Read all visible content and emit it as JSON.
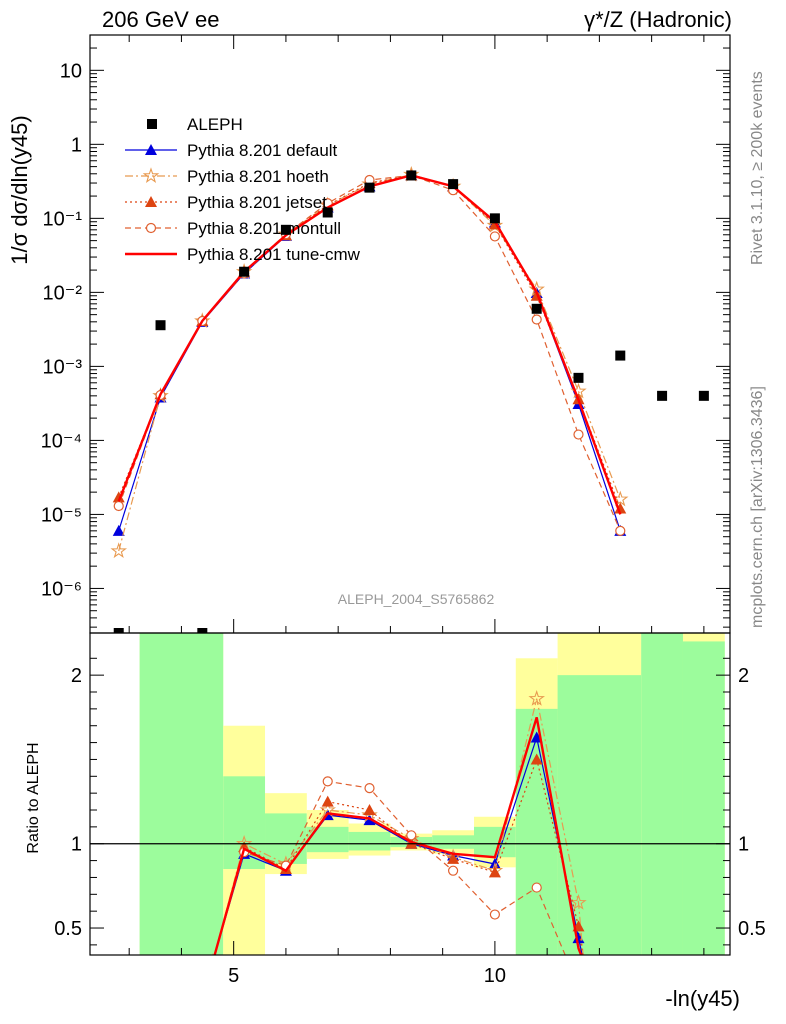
{
  "chart_data": [
    {
      "type": "line",
      "title_left": "206 GeV ee",
      "title_right": "γ*/Z (Hadronic)",
      "ylabel": "1/σ  dσ/dln(y45)",
      "yscale": "log",
      "xlim": [
        2.25,
        14.5
      ],
      "ylim": [
        2.5e-07,
        30
      ],
      "ytick_labels": [
        "10⁻⁶",
        "10⁻⁵",
        "10⁻⁴",
        "10⁻³",
        "10⁻²",
        "10⁻¹",
        "1",
        "10"
      ],
      "analysis_label": "ALEPH_2004_S5765862",
      "side_label_top": "Rivet 3.1.10, ≥ 200k events",
      "side_label_bottom": "mcplots.cern.ch [arXiv:1306.3436]",
      "data_points": {
        "name": "ALEPH",
        "color": "#000000",
        "x": [
          2.8,
          3.6,
          4.4,
          5.2,
          6.0,
          6.8,
          7.6,
          8.4,
          9.2,
          10.0,
          10.8,
          11.6,
          12.4,
          13.2,
          14.0
        ],
        "y": [
          2.5e-07,
          0.0036,
          2.5e-07,
          0.019,
          0.07,
          0.12,
          0.26,
          0.38,
          0.29,
          0.1,
          0.006,
          0.0007,
          0.0014,
          0.0004,
          0.0004
        ]
      },
      "series": [
        {
          "name": "Pythia 8.201 default",
          "color": "#0000dd",
          "dash": "",
          "marker": "triangle",
          "x": [
            2.8,
            3.6,
            4.4,
            5.2,
            6.0,
            6.8,
            7.6,
            8.4,
            9.2,
            10.0,
            10.8,
            11.6,
            12.4
          ],
          "y": [
            6e-06,
            0.00038,
            0.004,
            0.018,
            0.058,
            0.14,
            0.27,
            0.38,
            0.27,
            0.088,
            0.0098,
            0.00031,
            6e-06
          ]
        },
        {
          "name": "Pythia 8.201 hoeth",
          "color": "#e89a50",
          "dash": "8,3,2,3",
          "marker": "star",
          "x": [
            2.8,
            3.6,
            4.4,
            5.2,
            6.0,
            6.8,
            7.6,
            8.4,
            9.2,
            10.0,
            10.8,
            11.6,
            12.4
          ],
          "y": [
            3.2e-06,
            0.0004,
            0.0041,
            0.019,
            0.061,
            0.15,
            0.29,
            0.39,
            0.27,
            0.08,
            0.011,
            0.00046,
            1.6e-05
          ]
        },
        {
          "name": "Pythia 8.201 jetset",
          "color": "#dd4411",
          "dash": "2,3",
          "marker": "triangle",
          "x": [
            2.8,
            3.6,
            4.4,
            5.2,
            6.0,
            6.8,
            7.6,
            8.4,
            9.2,
            10.0,
            10.8,
            11.6,
            12.4
          ],
          "y": [
            1.7e-05,
            0.00042,
            0.0041,
            0.019,
            0.059,
            0.15,
            0.3,
            0.38,
            0.27,
            0.083,
            0.009,
            0.00036,
            1.2e-05
          ]
        },
        {
          "name": "Pythia 8.201 montull",
          "color": "#e06030",
          "dash": "6,4",
          "marker": "circle",
          "x": [
            2.8,
            3.6,
            4.4,
            5.2,
            6.0,
            6.8,
            7.6,
            8.4,
            9.2,
            10.0,
            10.8,
            11.6,
            12.4
          ],
          "y": [
            1.3e-05,
            0.00041,
            0.0041,
            0.018,
            0.061,
            0.16,
            0.33,
            0.38,
            0.24,
            0.057,
            0.0043,
            0.00012,
            6e-06
          ]
        },
        {
          "name": "Pythia 8.201 tune-cmw",
          "color": "#ff0000",
          "dash": "",
          "marker": "none",
          "x": [
            2.8,
            3.6,
            4.4,
            5.2,
            6.0,
            6.8,
            7.6,
            8.4,
            9.2,
            10.0,
            10.8,
            11.6,
            12.4
          ],
          "y": [
            1.5e-05,
            0.00042,
            0.0041,
            0.019,
            0.059,
            0.14,
            0.27,
            0.38,
            0.27,
            0.09,
            0.01,
            0.00035,
            1e-05
          ]
        }
      ]
    },
    {
      "type": "line",
      "ylabel": "Ratio to ALEPH",
      "xlabel": "-ln(y45)",
      "xlim": [
        2.25,
        14.5
      ],
      "ylim": [
        0.34,
        2.25
      ],
      "x_ticks": [
        5,
        10
      ],
      "y_ticks": [
        0.5,
        1,
        2
      ],
      "reference_line": 1,
      "band_colors": {
        "stat": "#9cfc9c",
        "total": "#ffff9c"
      },
      "bands": [
        {
          "x0": 3.2,
          "x1": 4.8,
          "stat": [
            0.34,
            2.25
          ],
          "total": [
            0.34,
            2.25
          ]
        },
        {
          "x0": 4.8,
          "x1": 5.6,
          "stat": [
            0.85,
            1.4
          ],
          "total": [
            0.34,
            1.7
          ]
        },
        {
          "x0": 5.6,
          "x1": 6.4,
          "stat": [
            0.88,
            1.18
          ],
          "total": [
            0.82,
            1.3
          ]
        },
        {
          "x0": 6.4,
          "x1": 7.2,
          "stat": [
            0.95,
            1.1
          ],
          "total": [
            0.91,
            1.2
          ]
        },
        {
          "x0": 7.2,
          "x1": 8.0,
          "stat": [
            0.96,
            1.07
          ],
          "total": [
            0.93,
            1.12
          ]
        },
        {
          "x0": 8.0,
          "x1": 8.8,
          "stat": [
            0.98,
            1.04
          ],
          "total": [
            0.96,
            1.06
          ]
        },
        {
          "x0": 8.8,
          "x1": 9.6,
          "stat": [
            0.97,
            1.05
          ],
          "total": [
            0.94,
            1.08
          ]
        },
        {
          "x0": 9.6,
          "x1": 10.4,
          "stat": [
            0.92,
            1.1
          ],
          "total": [
            0.86,
            1.16
          ]
        },
        {
          "x0": 10.4,
          "x1": 11.2,
          "stat": [
            0.34,
            1.8
          ],
          "total": [
            0.34,
            2.1
          ]
        },
        {
          "x0": 11.2,
          "x1": 12.8,
          "stat": [
            0.34,
            2.0
          ],
          "total": [
            0.34,
            2.25
          ]
        },
        {
          "x0": 12.8,
          "x1": 13.6,
          "stat": [
            0.34,
            2.25
          ],
          "total": [
            0.34,
            2.25
          ]
        },
        {
          "x0": 13.6,
          "x1": 14.4,
          "stat": [
            0.34,
            2.2
          ],
          "total": [
            0.34,
            2.25
          ]
        }
      ],
      "series": [
        {
          "name": "Pythia 8.201 default",
          "color": "#0000dd",
          "dash": "",
          "marker": "triangle",
          "x": [
            4.6,
            5.2,
            6.0,
            6.8,
            7.6,
            8.4,
            9.2,
            10.0,
            10.8,
            11.6,
            11.7
          ],
          "y": [
            0.3,
            0.94,
            0.84,
            1.17,
            1.14,
            1.0,
            0.93,
            0.88,
            1.63,
            0.44,
            0.3
          ]
        },
        {
          "name": "Pythia 8.201 hoeth",
          "color": "#e89a50",
          "dash": "8,3,2,3",
          "marker": "star",
          "x": [
            4.6,
            5.2,
            6.0,
            6.8,
            7.6,
            8.4,
            9.2,
            10.0,
            10.8,
            11.6,
            11.7
          ],
          "y": [
            0.3,
            1.0,
            0.88,
            1.2,
            1.17,
            1.03,
            0.92,
            0.84,
            1.86,
            0.65,
            0.3
          ]
        },
        {
          "name": "Pythia 8.201 jetset",
          "color": "#dd4411",
          "dash": "2,3",
          "marker": "triangle",
          "x": [
            4.6,
            5.2,
            6.0,
            6.8,
            7.6,
            8.4,
            9.2,
            10.0,
            10.8,
            11.6,
            11.7
          ],
          "y": [
            0.3,
            0.98,
            0.85,
            1.25,
            1.2,
            1.0,
            0.91,
            0.83,
            1.5,
            0.51,
            0.3
          ]
        },
        {
          "name": "Pythia 8.201 montull",
          "color": "#e06030",
          "dash": "6,4",
          "marker": "circle",
          "x": [
            4.6,
            5.2,
            6.0,
            6.8,
            7.6,
            8.4,
            9.2,
            10.0,
            10.8,
            11.4
          ],
          "y": [
            0.3,
            0.95,
            0.87,
            1.37,
            1.33,
            1.05,
            0.84,
            0.58,
            0.74,
            0.3
          ]
        },
        {
          "name": "Pythia 8.201 tune-cmw",
          "color": "#ff0000",
          "dash": "",
          "marker": "none",
          "x": [
            4.6,
            5.2,
            6.0,
            6.8,
            7.6,
            8.4,
            9.2,
            10.0,
            10.8,
            11.6,
            11.7
          ],
          "y": [
            0.3,
            0.97,
            0.84,
            1.18,
            1.15,
            1.01,
            0.94,
            0.92,
            1.75,
            0.38,
            0.3
          ]
        }
      ]
    }
  ]
}
